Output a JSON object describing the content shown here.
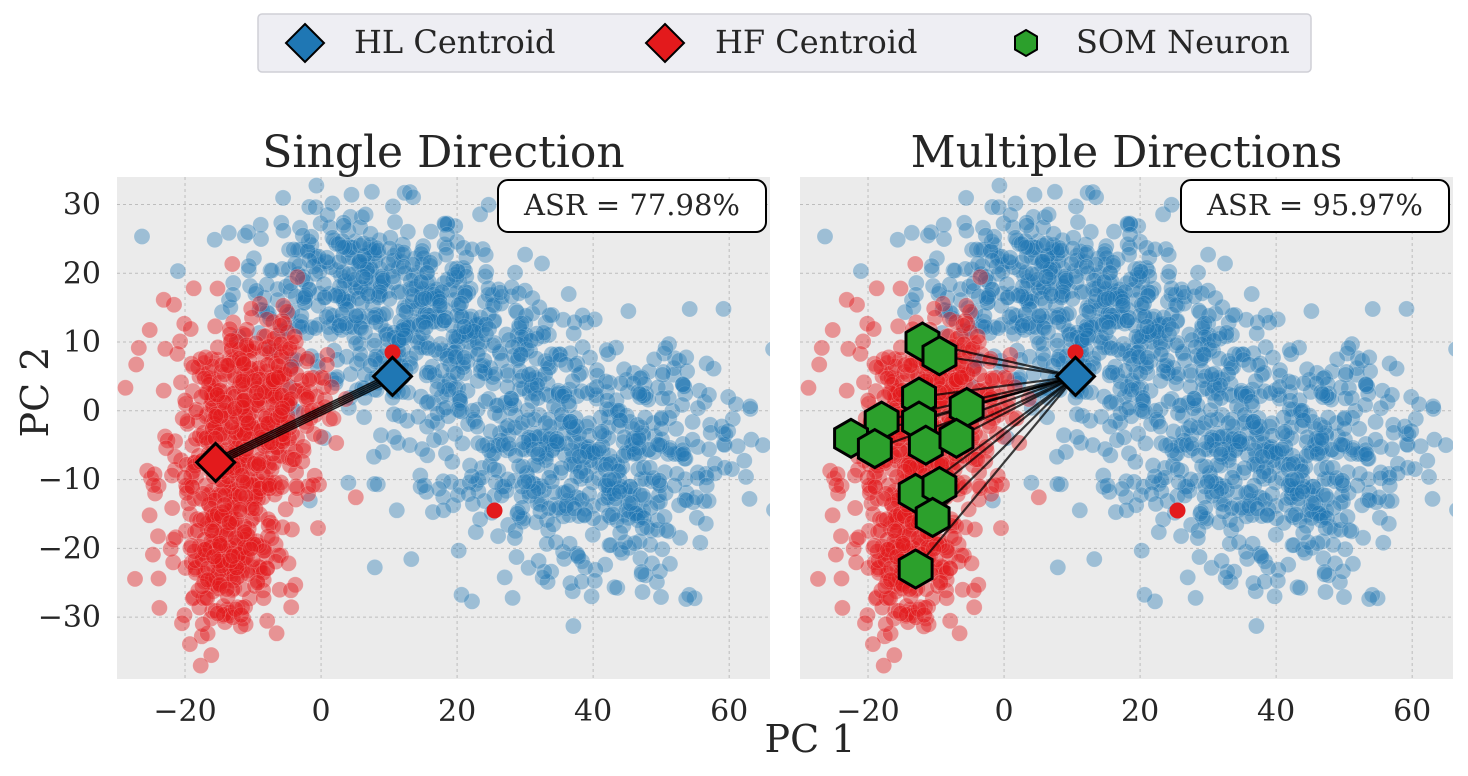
{
  "colors": {
    "hl": "#1f77b4",
    "hf": "#e31a1c",
    "som": "#2ca02c",
    "panel_bg": "#ebebeb",
    "grid": "#bdbdbd",
    "legend_bg": "#eeeef3"
  },
  "legend": {
    "items": [
      {
        "label": "HL Centroid",
        "marker": "diamond-icon",
        "color": "#1f77b4"
      },
      {
        "label": "HF Centroid",
        "marker": "diamond-icon",
        "color": "#e31a1c"
      },
      {
        "label": "SOM Neuron",
        "marker": "hexagon-icon",
        "color": "#2ca02c"
      }
    ]
  },
  "axes": {
    "xlabel": "PC 1",
    "ylabel": "PC 2"
  },
  "chart_data": [
    {
      "type": "scatter",
      "title": "Single Direction",
      "annotation": "ASR = 77.98%",
      "xlim": [
        -30,
        66
      ],
      "ylim": [
        -39,
        34
      ],
      "xticks": [
        -20,
        0,
        20,
        40,
        60
      ],
      "xtick_labels": [
        "−20",
        "0",
        "20",
        "40",
        "60"
      ],
      "yticks": [
        30,
        20,
        10,
        0,
        -10,
        -20,
        -30
      ],
      "ytick_labels": [
        "30",
        "20",
        "10",
        "0",
        "−10",
        "−20",
        "−30"
      ],
      "hl_centroid": [
        10.5,
        5
      ],
      "hf_centroid": [
        -15.5,
        -7.5
      ],
      "red_outliers": [
        [
          10.5,
          8.5
        ],
        [
          25.5,
          -14.5
        ]
      ],
      "som_neurons": []
    },
    {
      "type": "scatter",
      "title": "Multiple Directions",
      "annotation": "ASR = 95.97%",
      "xlim": [
        -30,
        66
      ],
      "ylim": [
        -39,
        34
      ],
      "xticks": [
        -20,
        0,
        20,
        40,
        60
      ],
      "xtick_labels": [
        "−20",
        "0",
        "20",
        "40",
        "60"
      ],
      "yticks": [
        30,
        20,
        10,
        0,
        -10,
        -20,
        -30
      ],
      "ytick_labels": [],
      "hl_centroid": [
        10.5,
        5
      ],
      "hf_centroid": null,
      "red_outliers": [
        [
          10.5,
          8.5
        ],
        [
          25.5,
          -14.5
        ]
      ],
      "som_neurons": [
        [
          -12,
          10
        ],
        [
          -9.5,
          8
        ],
        [
          -12.5,
          2
        ],
        [
          -5.5,
          0.5
        ],
        [
          -18,
          -1.5
        ],
        [
          -12.5,
          -1.5
        ],
        [
          -22.5,
          -4
        ],
        [
          -19,
          -5.5
        ],
        [
          -11.5,
          -5
        ],
        [
          -7,
          -4
        ],
        [
          -13,
          -12
        ],
        [
          -9.5,
          -11
        ],
        [
          -10.5,
          -15.5
        ],
        [
          -13,
          -23
        ]
      ]
    }
  ]
}
